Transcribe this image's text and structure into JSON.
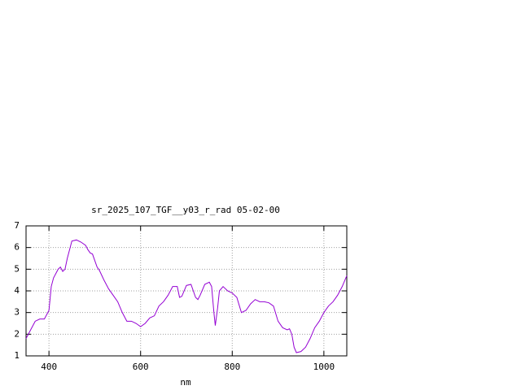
{
  "chart_data": {
    "type": "line",
    "title": "sr_2025_107_TGF__y03_r_rad 05-02-00",
    "x_label": "nm",
    "x": [
      350,
      360,
      370,
      380,
      390,
      400,
      405,
      410,
      420,
      425,
      430,
      435,
      440,
      450,
      460,
      470,
      480,
      485,
      490,
      495,
      500,
      505,
      510,
      520,
      530,
      540,
      550,
      560,
      570,
      580,
      590,
      600,
      610,
      620,
      630,
      640,
      650,
      660,
      670,
      680,
      685,
      690,
      700,
      710,
      720,
      725,
      730,
      740,
      750,
      755,
      760,
      763,
      768,
      772,
      780,
      790,
      800,
      810,
      820,
      830,
      840,
      850,
      860,
      870,
      880,
      890,
      900,
      910,
      920,
      925,
      930,
      935,
      940,
      950,
      960,
      970,
      980,
      990,
      1000,
      1010,
      1020,
      1030,
      1040,
      1050
    ],
    "series": [
      {
        "color": "#9400d3",
        "values": [
          1.8,
          2.2,
          2.6,
          2.7,
          2.7,
          3.1,
          4.2,
          4.6,
          5.0,
          5.1,
          4.9,
          5.0,
          5.5,
          6.3,
          6.35,
          6.25,
          6.1,
          5.9,
          5.75,
          5.7,
          5.4,
          5.1,
          4.95,
          4.5,
          4.1,
          3.8,
          3.5,
          3.0,
          2.6,
          2.6,
          2.5,
          2.35,
          2.5,
          2.75,
          2.85,
          3.3,
          3.5,
          3.8,
          4.2,
          4.2,
          3.7,
          3.75,
          4.25,
          4.3,
          3.7,
          3.6,
          3.8,
          4.3,
          4.4,
          4.2,
          3.0,
          2.4,
          3.2,
          4.0,
          4.2,
          4.0,
          3.9,
          3.7,
          3.0,
          3.1,
          3.4,
          3.6,
          3.5,
          3.5,
          3.45,
          3.3,
          2.6,
          2.3,
          2.2,
          2.25,
          2.0,
          1.4,
          1.15,
          1.2,
          1.4,
          1.8,
          2.3,
          2.6,
          3.0,
          3.3,
          3.5,
          3.8,
          4.2,
          4.7
        ]
      }
    ],
    "xlim": [
      350,
      1050
    ],
    "xticks": [
      400,
      600,
      800,
      1000
    ],
    "ylim": [
      1,
      7
    ],
    "yticks": [
      1,
      2,
      3,
      4,
      5,
      6,
      7
    ],
    "grid": true
  }
}
